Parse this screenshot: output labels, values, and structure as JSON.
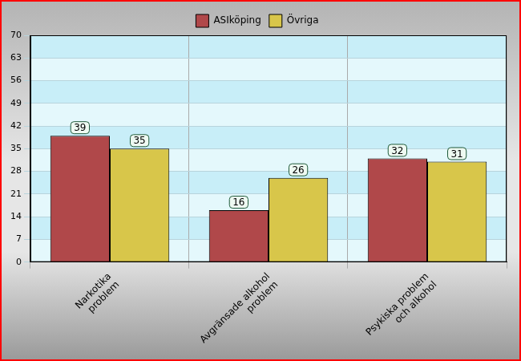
{
  "chart_data": {
    "type": "bar",
    "categories": [
      [
        "Narkotika",
        "problem"
      ],
      [
        "Avgränsade alkohol",
        "problem"
      ],
      [
        "Psykiska problem",
        "och alkohol"
      ]
    ],
    "series": [
      {
        "name": "ASIköping",
        "color": "#b0484a",
        "values": [
          39,
          16,
          32
        ]
      },
      {
        "name": "Övriga",
        "color": "#d8c64a",
        "values": [
          35,
          26,
          31
        ]
      }
    ],
    "ylim": [
      0,
      70
    ],
    "yticks": [
      0,
      7,
      14,
      21,
      28,
      35,
      42,
      49,
      56,
      63,
      70
    ],
    "grid": true,
    "legend": "top",
    "data_labels": true
  }
}
